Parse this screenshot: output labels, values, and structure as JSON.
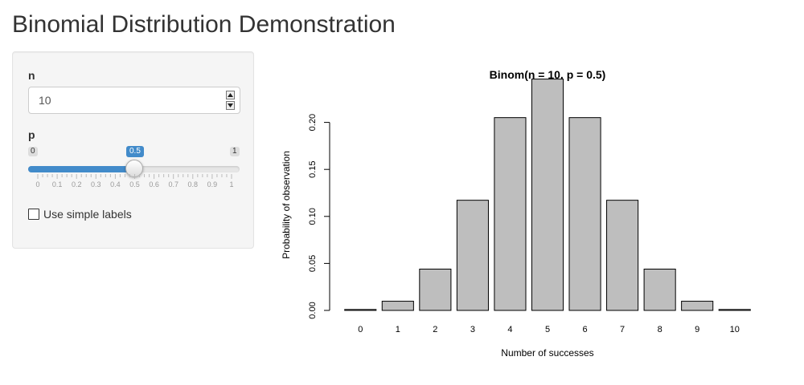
{
  "page": {
    "title": "Binomial Distribution Demonstration"
  },
  "sidebar": {
    "n": {
      "label": "n",
      "value": "10"
    },
    "p": {
      "label": "p",
      "min_label": "0",
      "max_label": "1",
      "value_label": "0.5",
      "value": 0.5,
      "grid_labels": [
        "0",
        "0.1",
        "0.2",
        "0.3",
        "0.4",
        "0.5",
        "0.6",
        "0.7",
        "0.8",
        "0.9",
        "1"
      ],
      "fill_color": "#428bca"
    },
    "simple_labels": {
      "label": "Use simple labels",
      "checked": false
    }
  },
  "chart_data": {
    "type": "bar",
    "title": "Binom(n = 10, p = 0.5)",
    "xlabel": "Number of successes",
    "ylabel": "Probability of observation",
    "categories": [
      "0",
      "1",
      "2",
      "3",
      "4",
      "5",
      "6",
      "7",
      "8",
      "9",
      "10"
    ],
    "values": [
      0.000977,
      0.009766,
      0.043945,
      0.117188,
      0.205078,
      0.246094,
      0.205078,
      0.117188,
      0.043945,
      0.009766,
      0.000977
    ],
    "yticks": [
      "0.00",
      "0.05",
      "0.10",
      "0.15",
      "0.20"
    ],
    "ylim": [
      0,
      0.25
    ],
    "bar_color": "#bebebe",
    "grid": false,
    "legend": "none"
  }
}
